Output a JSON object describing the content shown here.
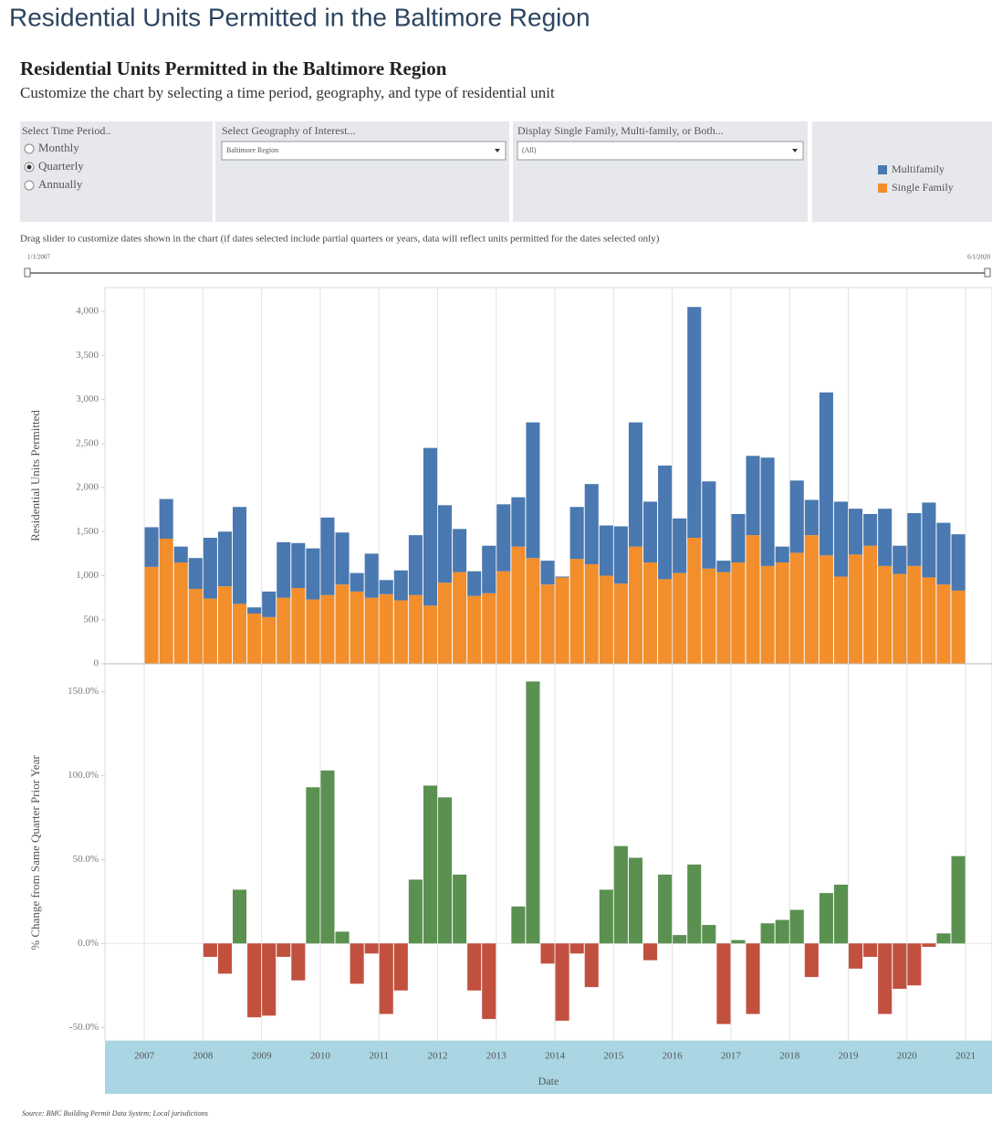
{
  "page_title": "Residential Units Permitted in the Baltimore Region",
  "dashboard_title": "Residential Units Permitted in the Baltimore Region",
  "dashboard_subtitle": "Customize the chart by selecting a time period, geography, and type of residential unit",
  "controls": {
    "time_period": {
      "label": "Select Time Period..",
      "options": [
        "Monthly",
        "Quarterly",
        "Annually"
      ],
      "selected": 1
    },
    "geography": {
      "label": "Select Geography of Interest...",
      "value": "Baltimore Region"
    },
    "display": {
      "label": "Display Single Family, Multi-family, or Both...",
      "value": "(All)"
    },
    "slider": {
      "instruction": "Drag slider to customize dates shown in the chart (if dates selected include partial quarters or years, data will reflect units permitted for the dates selected only)",
      "start": "1/1/2007",
      "end": "6/1/2020"
    }
  },
  "source": "Source: BMC Building Permit Data System; Local jurisdictions",
  "chart_data": [
    {
      "type": "stacked_bar",
      "ylabel": "Residential Units Permitted",
      "x": [
        2007,
        2007.25,
        2007.5,
        2007.75,
        2008,
        2008.25,
        2008.5,
        2008.75,
        2009,
        2009.25,
        2009.5,
        2009.75,
        2010,
        2010.25,
        2010.5,
        2010.75,
        2011,
        2011.25,
        2011.5,
        2011.75,
        2012,
        2012.25,
        2012.5,
        2012.75,
        2013,
        2013.25,
        2013.5,
        2013.75,
        2014,
        2014.25,
        2014.5,
        2014.75,
        2015,
        2015.25,
        2015.5,
        2015.75,
        2016,
        2016.25,
        2016.5,
        2016.75,
        2017,
        2017.25,
        2017.5,
        2017.75,
        2018,
        2018.25,
        2018.5,
        2018.75,
        2019,
        2019.25,
        2019.5,
        2019.75,
        2020,
        2020.25,
        2020.5,
        2020.75
      ],
      "series": [
        {
          "name": "Multifamily",
          "color": "#4a78b0",
          "values": [
            450,
            450,
            180,
            350,
            690,
            620,
            1100,
            70,
            290,
            630,
            510,
            580,
            880,
            590,
            210,
            500,
            160,
            340,
            680,
            1790,
            880,
            490,
            280,
            540,
            760,
            560,
            1540,
            270,
            10,
            590,
            910,
            570,
            650,
            1410,
            690,
            1290,
            620,
            2620,
            990,
            130,
            550,
            900,
            1230,
            180,
            820,
            400,
            1850,
            850,
            520,
            360,
            650,
            320,
            600,
            850,
            700,
            640
          ]
        },
        {
          "name": "Single Family",
          "color": "#f28e2b",
          "values": [
            1100,
            1420,
            1150,
            850,
            740,
            880,
            680,
            570,
            530,
            750,
            860,
            730,
            780,
            900,
            820,
            750,
            790,
            720,
            780,
            660,
            920,
            1040,
            770,
            800,
            1050,
            1330,
            1200,
            900,
            980,
            1190,
            1130,
            1000,
            910,
            1330,
            1150,
            960,
            1030,
            1430,
            1080,
            1040,
            1150,
            1460,
            1110,
            1150,
            1260,
            1460,
            1230,
            990,
            1240,
            1340,
            1110,
            1020,
            1110,
            980,
            900,
            830
          ]
        }
      ],
      "xlim": [
        2006.33,
        2021.45
      ],
      "xticks": [
        2007,
        2008,
        2009,
        2010,
        2011,
        2012,
        2013,
        2014,
        2015,
        2016,
        2017,
        2018,
        2019,
        2020,
        2021
      ],
      "ylim": [
        0,
        4270
      ],
      "yticks": [
        0,
        500,
        {
          "value": 1000,
          "label": "1,000"
        },
        {
          "value": 1500,
          "label": "1,500"
        },
        {
          "value": 2000,
          "label": "2,000"
        },
        {
          "value": 2500,
          "label": "2,500"
        },
        {
          "value": 3000,
          "label": "3,000"
        },
        {
          "value": 3500,
          "label": "3,500"
        },
        {
          "value": 4000,
          "label": "4,000"
        }
      ],
      "grid": true
    },
    {
      "type": "bar",
      "ylabel": "% Change from Same Quarter Prior Year",
      "xlabel": "Date",
      "x": [
        2008,
        2008.25,
        2008.5,
        2008.75,
        2009,
        2009.25,
        2009.5,
        2009.75,
        2010,
        2010.25,
        2010.5,
        2010.75,
        2011,
        2011.25,
        2011.5,
        2011.75,
        2012,
        2012.25,
        2012.5,
        2012.75,
        2013,
        2013.25,
        2013.5,
        2013.75,
        2014,
        2014.25,
        2014.5,
        2014.75,
        2015,
        2015.25,
        2015.5,
        2015.75,
        2016,
        2016.25,
        2016.5,
        2016.75,
        2017,
        2017.25,
        2017.5,
        2017.75,
        2018,
        2018.25,
        2018.5,
        2018.75,
        2019,
        2019.25,
        2019.5,
        2019.75,
        2020,
        2020.25,
        2020.5,
        2020.75
      ],
      "values": [
        -8,
        -18,
        32,
        -44,
        -43,
        -8,
        -22,
        93,
        103,
        7,
        -24,
        -6,
        -42,
        -28,
        38,
        94,
        87,
        41,
        -28,
        -45,
        0,
        22,
        156,
        -12,
        -46,
        -6,
        -26,
        32,
        58,
        51,
        -10,
        41,
        5,
        47,
        11,
        -48,
        2,
        -42,
        12,
        14,
        20,
        -20,
        30,
        35,
        -15,
        -8,
        -42,
        -27,
        -25,
        -2,
        6,
        52
      ],
      "positive_color": "#5a9150",
      "negative_color": "#c1503f",
      "xlim": [
        2006.33,
        2021.45
      ],
      "xticks": [
        2007,
        2008,
        2009,
        2010,
        2011,
        2012,
        2013,
        2014,
        2015,
        2016,
        2017,
        2018,
        2019,
        2020,
        2021
      ],
      "ylim": [
        -58,
        166
      ],
      "yticks": [
        {
          "value": -50,
          "label": "-50.0%"
        },
        {
          "value": 0,
          "label": "0.0%"
        },
        {
          "value": 50,
          "label": "50.0%"
        },
        {
          "value": 100,
          "label": "100.0%"
        },
        {
          "value": 150,
          "label": "150.0%"
        }
      ],
      "grid": true
    }
  ]
}
